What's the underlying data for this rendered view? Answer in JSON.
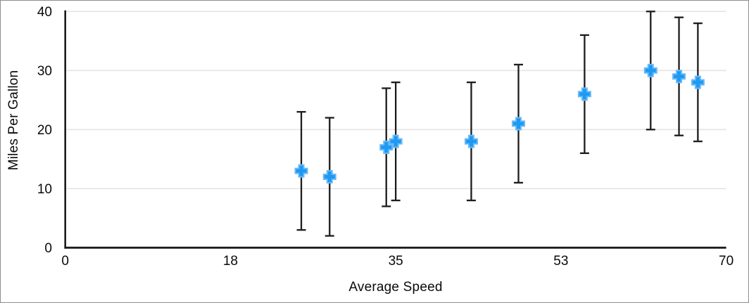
{
  "chart_data": {
    "type": "scatter",
    "title": "",
    "xlabel": "Average Speed",
    "ylabel": "Miles Per Gallon",
    "xlim": [
      0,
      70
    ],
    "ylim": [
      0,
      40
    ],
    "x_ticks": [
      {
        "value": 0,
        "label": "0"
      },
      {
        "value": 17.5,
        "label": "18"
      },
      {
        "value": 35,
        "label": "35"
      },
      {
        "value": 52.5,
        "label": "53"
      },
      {
        "value": 70,
        "label": "70"
      }
    ],
    "y_ticks": [
      {
        "value": 0,
        "label": "0"
      },
      {
        "value": 10,
        "label": "10"
      },
      {
        "value": 20,
        "label": "20"
      },
      {
        "value": 30,
        "label": "30"
      },
      {
        "value": 40,
        "label": "40"
      }
    ],
    "grid": "horizontal",
    "legend": "none",
    "series": [
      {
        "name": "Miles Per Gallon",
        "marker": "plus",
        "points": [
          {
            "x": 25,
            "y": 13,
            "error_minus": 10,
            "error_plus": 10
          },
          {
            "x": 28,
            "y": 12,
            "error_minus": 10,
            "error_plus": 10
          },
          {
            "x": 34,
            "y": 17,
            "error_minus": 10,
            "error_plus": 10
          },
          {
            "x": 35,
            "y": 18,
            "error_minus": 10,
            "error_plus": 10
          },
          {
            "x": 43,
            "y": 18,
            "error_minus": 10,
            "error_plus": 10
          },
          {
            "x": 48,
            "y": 21,
            "error_minus": 10,
            "error_plus": 10
          },
          {
            "x": 55,
            "y": 26,
            "error_minus": 10,
            "error_plus": 10
          },
          {
            "x": 62,
            "y": 30,
            "error_minus": 10,
            "error_plus": 10
          },
          {
            "x": 65,
            "y": 29,
            "error_minus": 10,
            "error_plus": 10
          },
          {
            "x": 67,
            "y": 28,
            "error_minus": 10,
            "error_plus": 10
          }
        ]
      }
    ],
    "colors": {
      "marker_fill": "#1c9af4",
      "marker_edge": "#6bb9f7",
      "error_bar": "#1c1c1c",
      "axis_line": "#1c1c1c",
      "gridline": "#e4e4e4",
      "tick_label": "#0a0a0a",
      "background": "#ffffff",
      "frame_border": "#8d8d8d"
    }
  }
}
